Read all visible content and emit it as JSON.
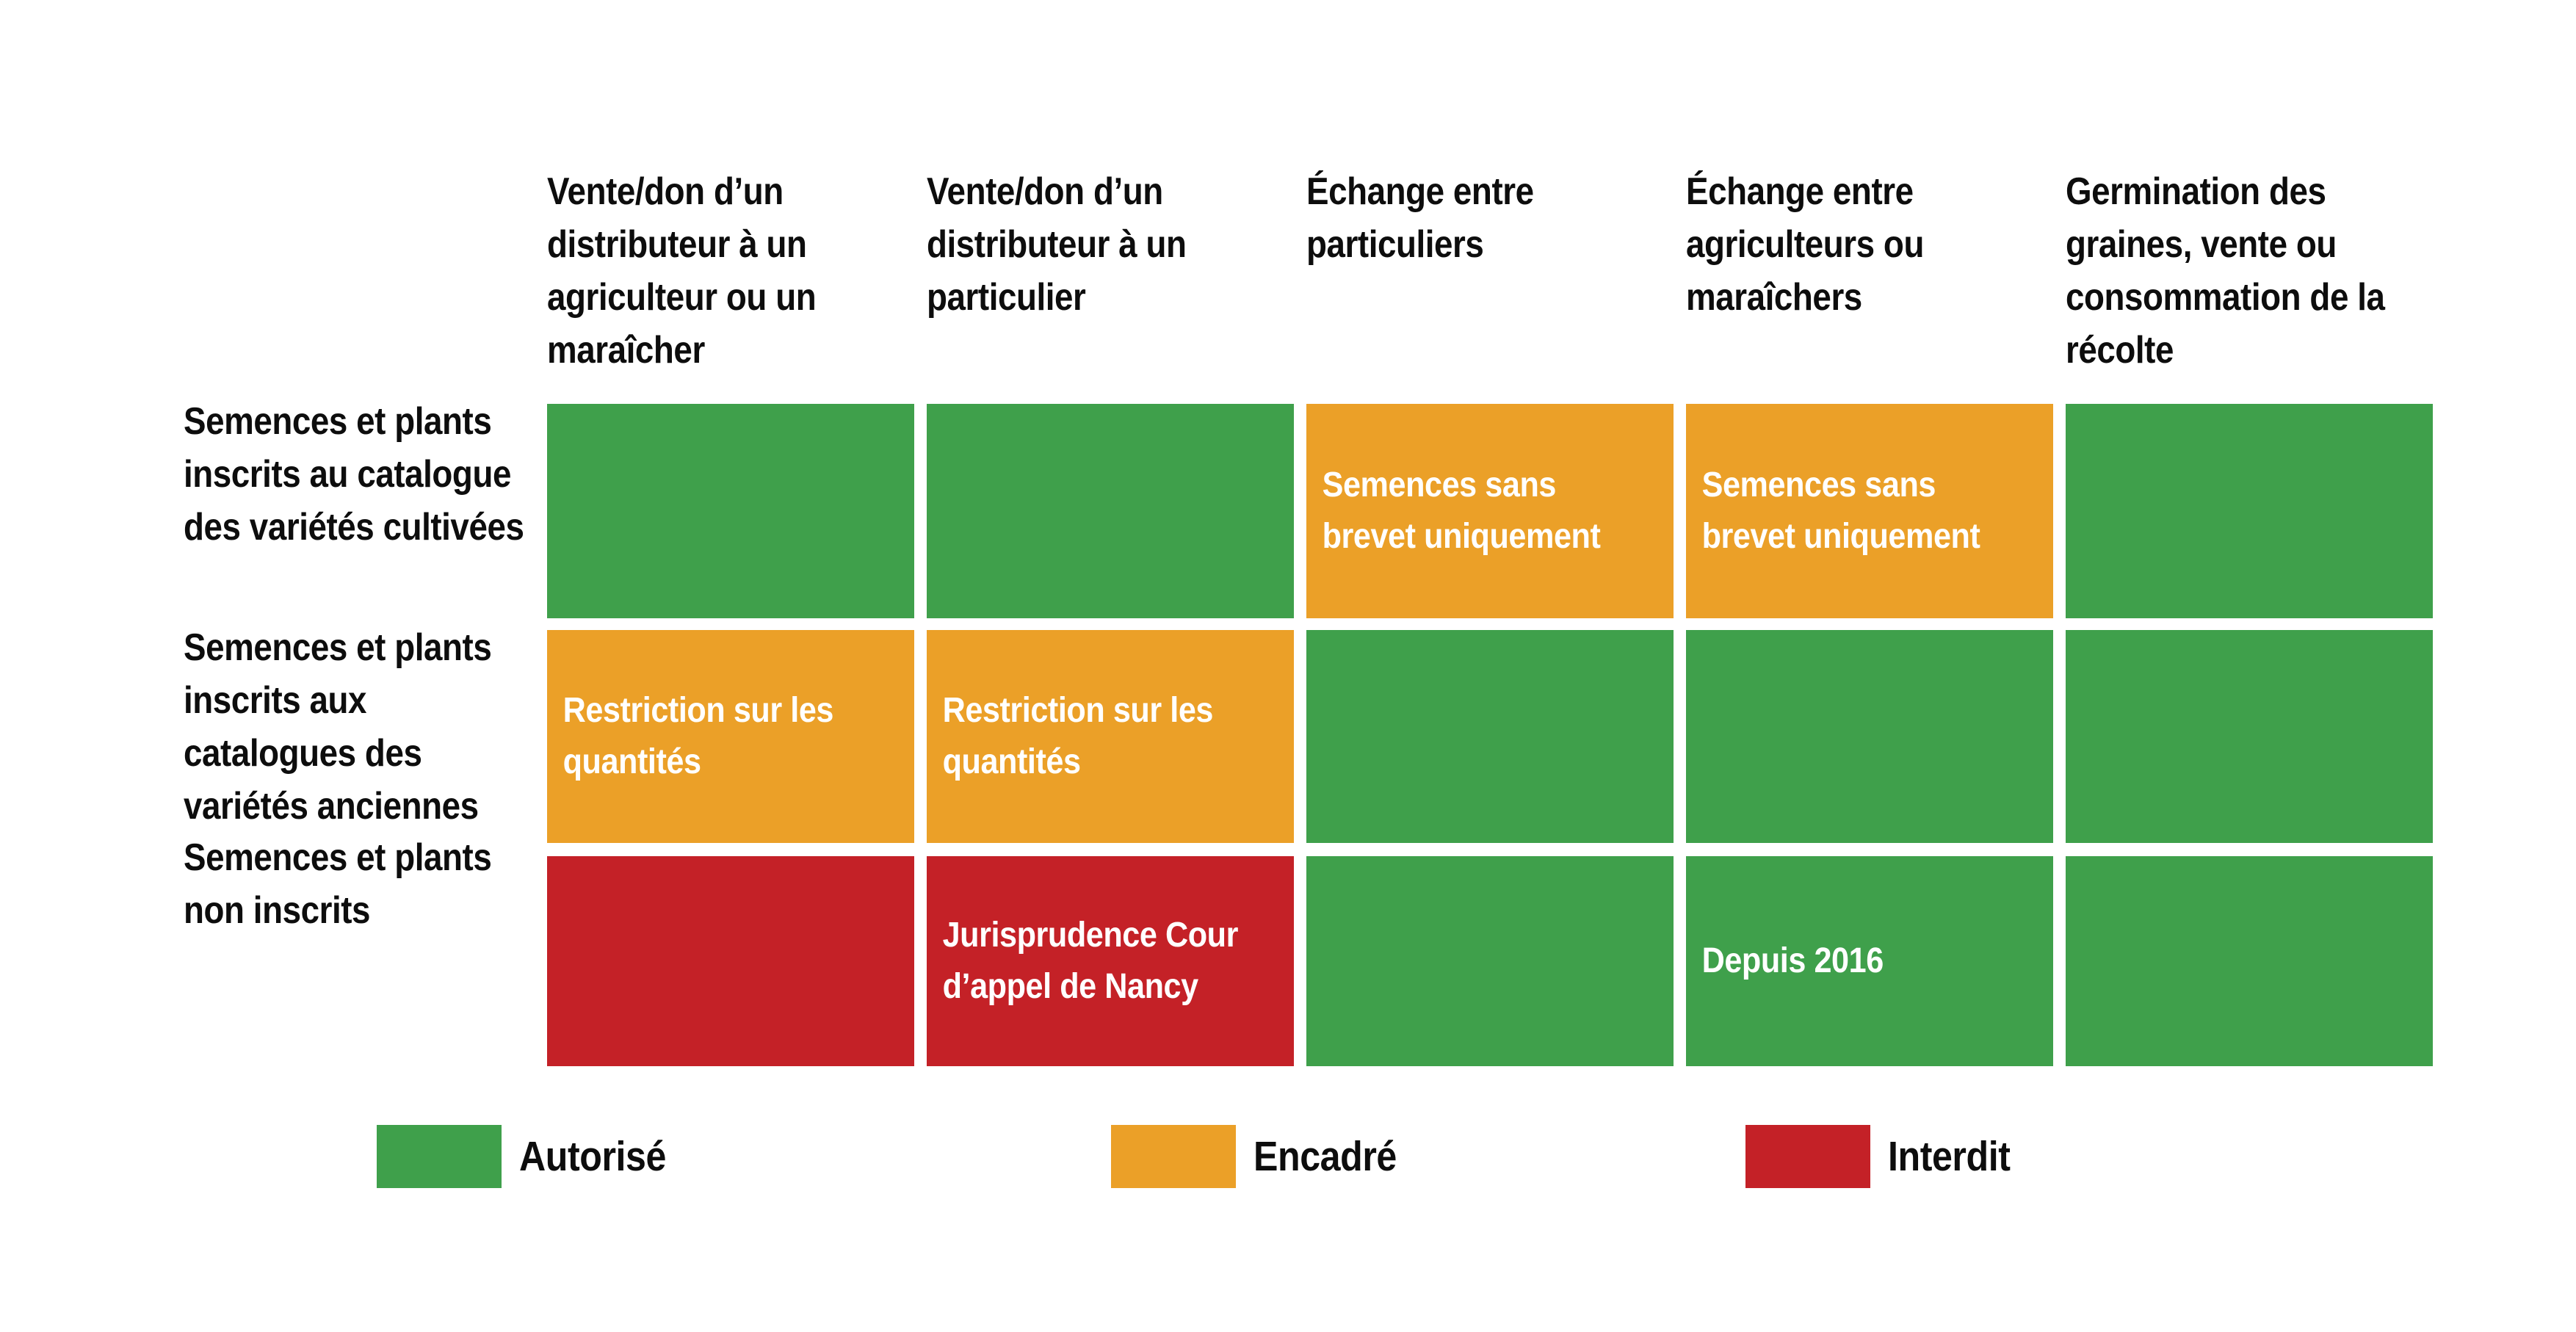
{
  "palette": {
    "autorise": "#3FA04B",
    "encadre": "#EBA028",
    "interdit": "#C42127",
    "label_text": "#0d0d0d",
    "cell_text": "#FFFFFF",
    "background": "#FFFFFF"
  },
  "columns": [
    {
      "label": "Vente/don d’un\ndistributeur à un\nagriculteur ou un\nmaraîcher"
    },
    {
      "label": "Vente/don d’un\ndistributeur à un\nparticulier"
    },
    {
      "label": "Échange entre\nparticuliers"
    },
    {
      "label": "Échange entre\nagriculteurs ou\nmaraîchers"
    },
    {
      "label": "Germination des\ngraines, vente ou\nconsommation de la\nrécolte"
    }
  ],
  "rows": [
    {
      "label": "Semences et plants\ninscrits au catalogue\ndes variétés cultivées",
      "cells": [
        {
          "status": "Autorisé",
          "color": "#3FA04B",
          "note": ""
        },
        {
          "status": "Autorisé",
          "color": "#3FA04B",
          "note": ""
        },
        {
          "status": "Encadré",
          "color": "#EBA028",
          "note": "Semences sans\nbrevet uniquement"
        },
        {
          "status": "Encadré",
          "color": "#EBA028",
          "note": "Semences sans\nbrevet uniquement"
        },
        {
          "status": "Autorisé",
          "color": "#3FA04B",
          "note": ""
        }
      ]
    },
    {
      "label": "Semences et plants\ninscrits aux\ncatalogues des\nvariétés anciennes",
      "cells": [
        {
          "status": "Encadré",
          "color": "#EBA028",
          "note": "Restriction sur les\nquantités"
        },
        {
          "status": "Encadré",
          "color": "#EBA028",
          "note": "Restriction sur les\nquantités"
        },
        {
          "status": "Autorisé",
          "color": "#3FA04B",
          "note": ""
        },
        {
          "status": "Autorisé",
          "color": "#3FA04B",
          "note": ""
        },
        {
          "status": "Autorisé",
          "color": "#3FA04B",
          "note": ""
        }
      ]
    },
    {
      "label": "Semences et plants\nnon inscrits",
      "cells": [
        {
          "status": "Interdit",
          "color": "#C42127",
          "note": ""
        },
        {
          "status": "Interdit",
          "color": "#C42127",
          "note": "Jurisprudence Cour\nd’appel de Nancy"
        },
        {
          "status": "Autorisé",
          "color": "#3FA04B",
          "note": ""
        },
        {
          "status": "Autorisé",
          "color": "#3FA04B",
          "note": "Depuis 2016"
        },
        {
          "status": "Autorisé",
          "color": "#3FA04B",
          "note": ""
        }
      ]
    }
  ],
  "legend": {
    "items": [
      {
        "label": "Autorisé",
        "color": "#3FA04B"
      },
      {
        "label": "Encadré",
        "color": "#EBA028"
      },
      {
        "label": "Interdit",
        "color": "#C42127"
      }
    ]
  },
  "chart_data": {
    "type": "heatmap",
    "title": "",
    "x_categories": [
      "Vente/don d’un distributeur à un agriculteur ou un maraîcher",
      "Vente/don d’un distributeur à un particulier",
      "Échange entre particuliers",
      "Échange entre agriculteurs ou maraîchers",
      "Germination des graines, vente ou consommation de la récolte"
    ],
    "y_categories": [
      "Semences et plants inscrits au catalogue des variétés cultivées",
      "Semences et plants inscrits aux catalogues des variétés anciennes",
      "Semences et plants non inscrits"
    ],
    "cells": [
      [
        "Autorisé",
        "Autorisé",
        "Encadré",
        "Encadré",
        "Autorisé"
      ],
      [
        "Encadré",
        "Encadré",
        "Autorisé",
        "Autorisé",
        "Autorisé"
      ],
      [
        "Interdit",
        "Interdit",
        "Autorisé",
        "Autorisé",
        "Autorisé"
      ]
    ],
    "annotations": [
      {
        "row": 0,
        "col": 2,
        "text": "Semences sans brevet uniquement"
      },
      {
        "row": 0,
        "col": 3,
        "text": "Semences sans brevet uniquement"
      },
      {
        "row": 1,
        "col": 0,
        "text": "Restriction sur les quantités"
      },
      {
        "row": 1,
        "col": 1,
        "text": "Restriction sur les quantités"
      },
      {
        "row": 2,
        "col": 1,
        "text": "Jurisprudence Cour d’appel de Nancy"
      },
      {
        "row": 2,
        "col": 3,
        "text": "Depuis 2016"
      }
    ],
    "legend_entries": [
      "Autorisé",
      "Encadré",
      "Interdit"
    ],
    "legend_position": "bottom",
    "colors": {
      "Autorisé": "#3FA04B",
      "Encadré": "#EBA028",
      "Interdit": "#C42127"
    },
    "grid": false
  }
}
